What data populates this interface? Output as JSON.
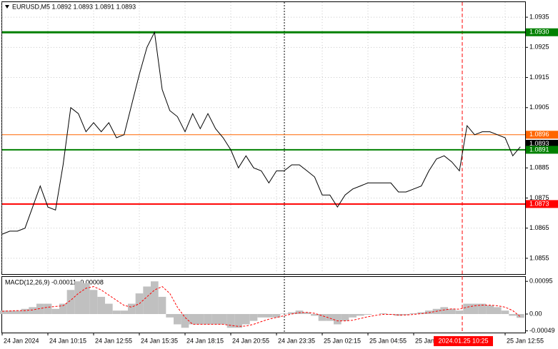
{
  "chart_data": [
    {
      "type": "line",
      "title": "EURUSD,M5  1.0892 1.0893 1.0891 1.0893",
      "categories": [
        "24 Jan 2024",
        null,
        null,
        null,
        null,
        null,
        "24 Jan 10:15",
        null,
        null,
        null,
        null,
        null,
        "24 Jan 12:55",
        null,
        null,
        null,
        null,
        null,
        "24 Jan 15:35",
        null,
        null,
        null,
        null,
        null,
        "24 Jan 18:15",
        null,
        null,
        null,
        null,
        null,
        "24 Jan 20:55",
        null,
        null,
        null,
        null,
        null,
        "24 Jan 23:35",
        null,
        null,
        null,
        null,
        null,
        "25 Jan 02:15",
        null,
        null,
        null,
        null,
        null,
        "25 Jan 04:55",
        null,
        null,
        null,
        null,
        null,
        "25 Jan",
        null,
        null,
        null,
        null,
        null,
        null,
        null,
        null,
        null,
        null,
        null,
        "25 Jan 12:55",
        null,
        null
      ],
      "series": [
        {
          "color": "#000000",
          "values": [
            1.0863,
            1.0864,
            1.0864,
            1.0865,
            1.0872,
            1.0879,
            1.0872,
            1.0871,
            1.0886,
            1.0905,
            1.0903,
            1.0897,
            1.09,
            1.0897,
            1.09,
            1.0895,
            1.0896,
            1.0906,
            1.0916,
            1.0925,
            1.093,
            1.0911,
            1.0904,
            1.0902,
            1.0897,
            1.0903,
            1.0898,
            1.0903,
            1.0898,
            1.0895,
            1.0891,
            1.0885,
            1.0889,
            1.0885,
            1.0884,
            1.088,
            1.0884,
            1.0884,
            1.0886,
            1.0886,
            1.0884,
            1.0882,
            1.0876,
            1.0876,
            1.0872,
            1.0876,
            1.0878,
            1.0879,
            1.088,
            1.088,
            1.088,
            1.088,
            1.0877,
            1.0877,
            1.0878,
            1.0879,
            1.0884,
            1.0888,
            1.0889,
            1.0887,
            1.0884,
            1.0899,
            1.0896,
            1.0897,
            1.0897,
            1.0896,
            1.0895,
            1.0889,
            1.0892
          ]
        }
      ],
      "ylim": [
        1.085,
        1.094
      ],
      "yticks": [
        1.0935,
        1.0925,
        1.0915,
        1.0905,
        1.0885,
        1.0875,
        1.0865,
        1.0855
      ],
      "grid": true,
      "levels": [
        {
          "value": 1.093,
          "label": "1.0930",
          "color": "#008000"
        },
        {
          "value": 1.0896,
          "color": "#ff6600"
        },
        {
          "value": 1.0891,
          "color": "#008000"
        },
        {
          "value": 1.0873,
          "color": "#ff0000"
        }
      ],
      "last_price": 1.0893,
      "crosshair_label": "2024.01.25 10:25"
    },
    {
      "type": "bar",
      "title": "MACD(12,26,9) -0.00011 -0.00008",
      "series": [
        {
          "type": "bar",
          "color": "#c0c0c0",
          "values": [
            0.0001,
            0.0001,
            0.0001,
            0.00015,
            0.0002,
            0.0003,
            0.0003,
            0.00015,
            0.0003,
            0.0007,
            0.00095,
            0.0009,
            0.0007,
            0.0005,
            0.0003,
            0.0001,
            0.0001,
            0.0003,
            0.0006,
            0.0008,
            0.00095,
            0.0005,
            -0.0001,
            -0.0003,
            -0.0004,
            -0.0003,
            -0.0003,
            -0.0003,
            -0.0003,
            -0.0003,
            -0.0004,
            -0.0004,
            -0.0003,
            -0.0002,
            -0.0001,
            -0.0001,
            -0.0001,
            1e-05,
            5e-05,
            0.0001,
            5e-05,
            -5e-05,
            -0.0002,
            -0.0002,
            -0.0003,
            -0.0002,
            -0.0001,
            -5e-05,
            -2e-05,
            0,
            2e-05,
            -2e-05,
            -5e-05,
            -3e-05,
            2e-05,
            5e-05,
            0.0001,
            0.00015,
            0.0002,
            0.00015,
            0.0001,
            0.0003,
            0.0003,
            0.0003,
            0.00025,
            0.0002,
            0.0001,
            -5e-05,
            -0.00011
          ]
        },
        {
          "type": "line",
          "color": "#ff0000",
          "values": [
            8e-05,
            9e-05,
            0.0001,
            0.0001,
            0.00012,
            0.00016,
            0.0002,
            0.00022,
            0.00024,
            0.0004,
            0.0006,
            0.00075,
            0.0008,
            0.0007,
            0.00055,
            0.0004,
            0.00025,
            0.0002,
            0.0003,
            0.0005,
            0.0007,
            0.0008,
            0.0006,
            0.0002,
            -0.0001,
            -0.0003,
            -0.0003,
            -0.0003,
            -0.0003,
            -0.0003,
            -0.00033,
            -0.00036,
            -0.00035,
            -0.0003,
            -0.00022,
            -0.00015,
            -0.0001,
            -5e-05,
            0,
            4e-05,
            5e-05,
            2e-05,
            -5e-05,
            -0.00012,
            -0.0002,
            -0.0002,
            -0.00018,
            -0.00013,
            -8e-05,
            -4e-05,
            -1e-05,
            -1e-05,
            -3e-05,
            -3e-05,
            -1e-05,
            1e-05,
            4e-05,
            8e-05,
            0.00012,
            0.00015,
            0.00014,
            0.0002,
            0.00024,
            0.00026,
            0.00026,
            0.00024,
            0.0002,
            0.0001,
            -8e-05
          ]
        }
      ],
      "ylim": [
        -0.00054,
        0.0011
      ],
      "yticks": [
        0.00095,
        {
          "value": 0,
          "label": "0.00"
        },
        -0.00049
      ]
    }
  ]
}
